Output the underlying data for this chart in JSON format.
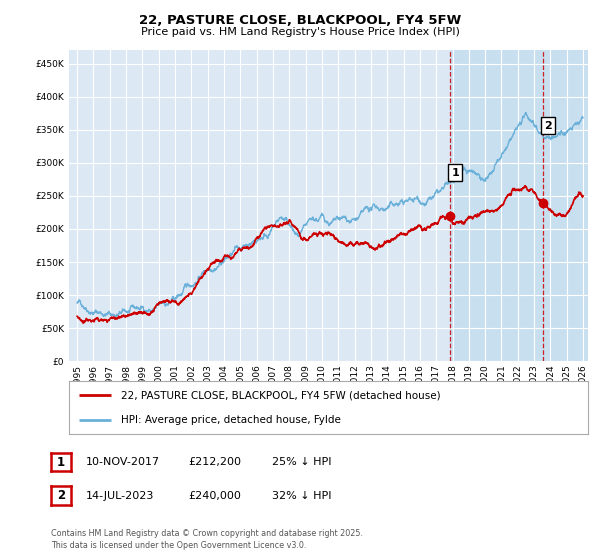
{
  "title": "22, PASTURE CLOSE, BLACKPOOL, FY4 5FW",
  "subtitle": "Price paid vs. HM Land Registry's House Price Index (HPI)",
  "ylim": [
    0,
    470000
  ],
  "yticks": [
    0,
    50000,
    100000,
    150000,
    200000,
    250000,
    300000,
    350000,
    400000,
    450000
  ],
  "xlim_start": 1994.5,
  "xlim_end": 2026.3,
  "hpi_color": "#6ab0d8",
  "price_color": "#cc0000",
  "vline_color": "#cc0000",
  "shade_color": "#c8dff0",
  "marker1_x": 2017.86,
  "marker1_y": 212200,
  "marker2_x": 2023.54,
  "marker2_y": 240000,
  "legend_line1": "22, PASTURE CLOSE, BLACKPOOL, FY4 5FW (detached house)",
  "legend_line2": "HPI: Average price, detached house, Fylde",
  "note1_date": "10-NOV-2017",
  "note1_price": "£212,200",
  "note1_hpi": "25% ↓ HPI",
  "note2_date": "14-JUL-2023",
  "note2_price": "£240,000",
  "note2_hpi": "32% ↓ HPI",
  "footer": "Contains HM Land Registry data © Crown copyright and database right 2025.\nThis data is licensed under the Open Government Licence v3.0.",
  "plot_bg_color": "#dce9f5",
  "fig_bg_color": "#ffffff",
  "grid_color": "#ffffff"
}
